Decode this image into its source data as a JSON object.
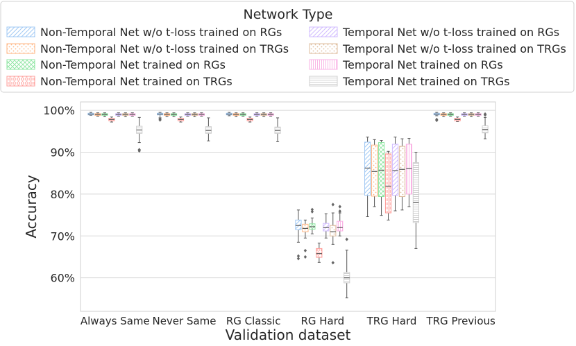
{
  "chart_data": {
    "type": "box",
    "title": "",
    "xlabel": "Validation dataset",
    "ylabel": "Accuracy",
    "ylim": [
      52,
      102
    ],
    "yticks": [
      60,
      70,
      80,
      90,
      100
    ],
    "ytick_labels": [
      "60%",
      "70%",
      "80%",
      "90%",
      "100%"
    ],
    "grid": true,
    "legend": {
      "title": "Network Type",
      "placement": "top-center"
    },
    "categories": [
      "Always Same",
      "Never Same",
      "RG Classic",
      "RG Hard",
      "TRG Hard",
      "TRG Previous"
    ],
    "series": [
      {
        "name": "Non-Temporal Net w/o t-loss trained on RGs",
        "color": "#a1c9f4",
        "hatch": "diagonal",
        "stats": [
          {
            "whislo": 98.8,
            "q1": 98.9,
            "med": 99.1,
            "q3": 99.3,
            "whishi": 99.5,
            "fliers": []
          },
          {
            "whislo": 98.2,
            "q1": 98.9,
            "med": 99.1,
            "q3": 99.3,
            "whishi": 99.5,
            "fliers": [
              97.9,
              97.7
            ]
          },
          {
            "whislo": 98.7,
            "q1": 98.9,
            "med": 99.1,
            "q3": 99.3,
            "whishi": 99.5,
            "fliers": []
          },
          {
            "whislo": 68.5,
            "q1": 71.5,
            "med": 72.5,
            "q3": 73.8,
            "whishi": 76.2,
            "fliers": [
              65.2,
              64.6
            ]
          },
          {
            "whislo": 74.6,
            "q1": 79.7,
            "med": 86.2,
            "q3": 92.4,
            "whishi": 93.6,
            "fliers": []
          },
          {
            "whislo": 98.7,
            "q1": 98.9,
            "med": 99.1,
            "q3": 99.3,
            "whishi": 99.5,
            "fliers": [
              97.8,
              97.6
            ]
          }
        ]
      },
      {
        "name": "Non-Temporal Net w/o t-loss trained on TRGs",
        "color": "#ffb482",
        "hatch": "dots",
        "stats": [
          {
            "whislo": 98.6,
            "q1": 98.8,
            "med": 99.0,
            "q3": 99.2,
            "whishi": 99.4,
            "fliers": []
          },
          {
            "whislo": 98.5,
            "q1": 98.8,
            "med": 99.0,
            "q3": 99.2,
            "whishi": 99.4,
            "fliers": []
          },
          {
            "whislo": 98.5,
            "q1": 98.8,
            "med": 99.0,
            "q3": 99.2,
            "whishi": 99.4,
            "fliers": []
          },
          {
            "whislo": 69.5,
            "q1": 71.0,
            "med": 71.8,
            "q3": 72.8,
            "whishi": 73.8,
            "fliers": [
              66.5,
              65.0
            ]
          },
          {
            "whislo": 77.0,
            "q1": 79.5,
            "med": 85.4,
            "q3": 91.7,
            "whishi": 93.0,
            "fliers": []
          },
          {
            "whislo": 98.5,
            "q1": 98.8,
            "med": 99.0,
            "q3": 99.2,
            "whishi": 99.4,
            "fliers": []
          }
        ]
      },
      {
        "name": "Non-Temporal Net trained on RGs",
        "color": "#8de5a1",
        "hatch": "crosshatch",
        "stats": [
          {
            "whislo": 98.5,
            "q1": 98.8,
            "med": 99.0,
            "q3": 99.2,
            "whishi": 99.4,
            "fliers": []
          },
          {
            "whislo": 98.5,
            "q1": 98.8,
            "med": 99.0,
            "q3": 99.2,
            "whishi": 99.4,
            "fliers": []
          },
          {
            "whislo": 98.6,
            "q1": 98.8,
            "med": 99.0,
            "q3": 99.2,
            "whishi": 99.4,
            "fliers": []
          },
          {
            "whislo": 70.5,
            "q1": 71.6,
            "med": 72.2,
            "q3": 72.9,
            "whishi": 74.3,
            "fliers": [
              75.8,
              76.3
            ]
          },
          {
            "whislo": 74.9,
            "q1": 79.4,
            "med": 85.7,
            "q3": 92.3,
            "whishi": 92.8,
            "fliers": []
          },
          {
            "whislo": 98.6,
            "q1": 98.8,
            "med": 99.0,
            "q3": 99.2,
            "whishi": 99.4,
            "fliers": []
          }
        ]
      },
      {
        "name": "Non-Temporal Net trained on TRGs",
        "color": "#ff9f9b",
        "hatch": "dense-dots",
        "stats": [
          {
            "whislo": 97.2,
            "q1": 97.5,
            "med": 97.8,
            "q3": 98.1,
            "whishi": 98.4,
            "fliers": []
          },
          {
            "whislo": 97.2,
            "q1": 97.5,
            "med": 97.8,
            "q3": 98.1,
            "whishi": 98.4,
            "fliers": []
          },
          {
            "whislo": 97.2,
            "q1": 97.5,
            "med": 97.8,
            "q3": 98.1,
            "whishi": 98.4,
            "fliers": []
          },
          {
            "whislo": 63.7,
            "q1": 64.9,
            "med": 65.8,
            "q3": 67.0,
            "whishi": 68.3,
            "fliers": []
          },
          {
            "whislo": 73.8,
            "q1": 75.5,
            "med": 81.9,
            "q3": 89.6,
            "whishi": 90.2,
            "fliers": []
          },
          {
            "whislo": 97.3,
            "q1": 97.5,
            "med": 97.8,
            "q3": 98.1,
            "whishi": 98.4,
            "fliers": []
          }
        ]
      },
      {
        "name": "Temporal Net w/o t-loss trained on RGs",
        "color": "#d0bbff",
        "hatch": "diagonal",
        "stats": [
          {
            "whislo": 98.6,
            "q1": 98.8,
            "med": 99.0,
            "q3": 99.2,
            "whishi": 99.4,
            "fliers": []
          },
          {
            "whislo": 98.6,
            "q1": 98.8,
            "med": 99.0,
            "q3": 99.2,
            "whishi": 99.4,
            "fliers": []
          },
          {
            "whislo": 98.6,
            "q1": 98.8,
            "med": 99.0,
            "q3": 99.2,
            "whishi": 99.4,
            "fliers": []
          },
          {
            "whislo": 69.5,
            "q1": 71.2,
            "med": 72.0,
            "q3": 73.0,
            "whishi": 75.3,
            "fliers": []
          },
          {
            "whislo": 76.0,
            "q1": 79.7,
            "med": 85.6,
            "q3": 91.9,
            "whishi": 93.6,
            "fliers": []
          },
          {
            "whislo": 98.6,
            "q1": 98.8,
            "med": 99.0,
            "q3": 99.2,
            "whishi": 99.4,
            "fliers": []
          }
        ]
      },
      {
        "name": "Temporal Net w/o t-loss trained on TRGs",
        "color": "#debb9b",
        "hatch": "dots",
        "stats": [
          {
            "whislo": 98.5,
            "q1": 98.8,
            "med": 99.0,
            "q3": 99.2,
            "whishi": 99.4,
            "fliers": []
          },
          {
            "whislo": 98.5,
            "q1": 98.8,
            "med": 99.0,
            "q3": 99.2,
            "whishi": 99.4,
            "fliers": []
          },
          {
            "whislo": 98.5,
            "q1": 98.8,
            "med": 99.0,
            "q3": 99.2,
            "whishi": 99.4,
            "fliers": []
          },
          {
            "whislo": 68.0,
            "q1": 70.0,
            "med": 71.0,
            "q3": 72.5,
            "whishi": 75.5,
            "fliers": [
              77.5,
              63.6
            ]
          },
          {
            "whislo": 76.2,
            "q1": 79.4,
            "med": 85.9,
            "q3": 91.4,
            "whishi": 93.2,
            "fliers": []
          },
          {
            "whislo": 98.5,
            "q1": 98.8,
            "med": 99.0,
            "q3": 99.2,
            "whishi": 99.4,
            "fliers": []
          }
        ]
      },
      {
        "name": "Temporal Net trained on RGs",
        "color": "#fab0e4",
        "hatch": "vertical",
        "stats": [
          {
            "whislo": 98.6,
            "q1": 98.8,
            "med": 99.0,
            "q3": 99.2,
            "whishi": 99.4,
            "fliers": []
          },
          {
            "whislo": 98.6,
            "q1": 98.8,
            "med": 99.0,
            "q3": 99.2,
            "whishi": 99.4,
            "fliers": []
          },
          {
            "whislo": 98.6,
            "q1": 98.8,
            "med": 99.0,
            "q3": 99.2,
            "whishi": 99.4,
            "fliers": []
          },
          {
            "whislo": 70.0,
            "q1": 71.2,
            "med": 72.0,
            "q3": 73.5,
            "whishi": 75.5,
            "fliers": [
              77.0,
              75.9
            ]
          },
          {
            "whislo": 77.0,
            "q1": 80.0,
            "med": 86.1,
            "q3": 91.9,
            "whishi": 93.3,
            "fliers": []
          },
          {
            "whislo": 98.6,
            "q1": 98.8,
            "med": 99.0,
            "q3": 99.2,
            "whishi": 99.4,
            "fliers": []
          }
        ]
      },
      {
        "name": "Temporal Net trained on TRGs",
        "color": "#cfcfcf",
        "hatch": "horizontal",
        "stats": [
          {
            "whislo": 92.3,
            "q1": 94.5,
            "med": 95.3,
            "q3": 96.2,
            "whishi": 98.3,
            "fliers": [
              90.6,
              90.3
            ]
          },
          {
            "whislo": 92.7,
            "q1": 94.5,
            "med": 95.2,
            "q3": 96.1,
            "whishi": 98.2,
            "fliers": []
          },
          {
            "whislo": 92.5,
            "q1": 94.5,
            "med": 95.2,
            "q3": 96.0,
            "whishi": 98.2,
            "fliers": []
          },
          {
            "whislo": 55.2,
            "q1": 58.8,
            "med": 60.0,
            "q3": 61.3,
            "whishi": 66.6,
            "fliers": [
              69.2
            ]
          },
          {
            "whislo": 67.0,
            "q1": 73.2,
            "med": 78.0,
            "q3": 87.5,
            "whishi": 90.0,
            "fliers": []
          },
          {
            "whislo": 93.2,
            "q1": 94.6,
            "med": 95.4,
            "q3": 96.3,
            "whishi": 98.3,
            "fliers": [
              98.9,
              99.1
            ]
          }
        ]
      }
    ]
  }
}
